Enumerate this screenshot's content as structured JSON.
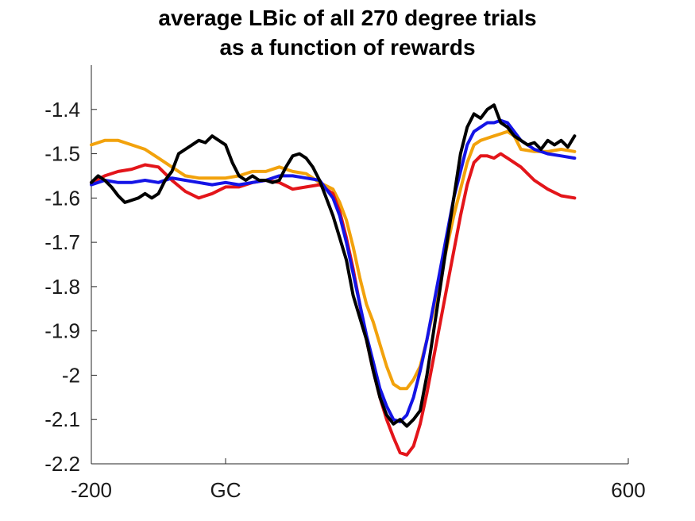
{
  "chart_data": {
    "type": "line",
    "title_lines": [
      "average LBic of all 270 degree trials",
      "as a function of rewards"
    ],
    "xlabel": "",
    "ylabel": "",
    "xlim": [
      -200,
      600
    ],
    "ylim": [
      -2.2,
      -1.3
    ],
    "x_ticks": [
      {
        "value": -200,
        "label": "-200"
      },
      {
        "value": 0,
        "label": "GC"
      },
      {
        "value": 600,
        "label": "600"
      }
    ],
    "y_ticks": [
      {
        "value": -1.4,
        "label": "-1.4"
      },
      {
        "value": -1.5,
        "label": "-1.5"
      },
      {
        "value": -1.6,
        "label": "-1.6"
      },
      {
        "value": -1.7,
        "label": "-1.7"
      },
      {
        "value": -1.8,
        "label": "-1.8"
      },
      {
        "value": -1.9,
        "label": "-1.9"
      },
      {
        "value": -2.0,
        "label": "-2"
      },
      {
        "value": -2.1,
        "label": "-2.1"
      },
      {
        "value": -2.2,
        "label": "-2.2"
      }
    ],
    "grid": false,
    "legend": "none",
    "series": [
      {
        "color": "#f2a20c",
        "points": [
          [
            -200,
            -1.48
          ],
          [
            -180,
            -1.47
          ],
          [
            -160,
            -1.47
          ],
          [
            -140,
            -1.48
          ],
          [
            -120,
            -1.49
          ],
          [
            -100,
            -1.51
          ],
          [
            -80,
            -1.53
          ],
          [
            -60,
            -1.55
          ],
          [
            -40,
            -1.555
          ],
          [
            -20,
            -1.555
          ],
          [
            0,
            -1.555
          ],
          [
            20,
            -1.55
          ],
          [
            40,
            -1.54
          ],
          [
            60,
            -1.54
          ],
          [
            80,
            -1.53
          ],
          [
            100,
            -1.54
          ],
          [
            120,
            -1.545
          ],
          [
            140,
            -1.565
          ],
          [
            160,
            -1.58
          ],
          [
            170,
            -1.61
          ],
          [
            180,
            -1.65
          ],
          [
            190,
            -1.71
          ],
          [
            200,
            -1.78
          ],
          [
            210,
            -1.84
          ],
          [
            220,
            -1.88
          ],
          [
            230,
            -1.93
          ],
          [
            240,
            -1.98
          ],
          [
            250,
            -2.02
          ],
          [
            260,
            -2.03
          ],
          [
            270,
            -2.03
          ],
          [
            280,
            -2.01
          ],
          [
            290,
            -1.98
          ],
          [
            300,
            -1.92
          ],
          [
            310,
            -1.85
          ],
          [
            320,
            -1.78
          ],
          [
            330,
            -1.71
          ],
          [
            340,
            -1.64
          ],
          [
            350,
            -1.58
          ],
          [
            360,
            -1.52
          ],
          [
            370,
            -1.48
          ],
          [
            380,
            -1.47
          ],
          [
            390,
            -1.465
          ],
          [
            400,
            -1.46
          ],
          [
            410,
            -1.455
          ],
          [
            420,
            -1.45
          ],
          [
            430,
            -1.46
          ],
          [
            440,
            -1.49
          ],
          [
            460,
            -1.495
          ],
          [
            480,
            -1.495
          ],
          [
            500,
            -1.49
          ],
          [
            520,
            -1.495
          ]
        ]
      },
      {
        "color": "#e3151a",
        "points": [
          [
            -200,
            -1.565
          ],
          [
            -180,
            -1.55
          ],
          [
            -160,
            -1.54
          ],
          [
            -140,
            -1.535
          ],
          [
            -120,
            -1.525
          ],
          [
            -100,
            -1.53
          ],
          [
            -80,
            -1.56
          ],
          [
            -60,
            -1.585
          ],
          [
            -40,
            -1.6
          ],
          [
            -20,
            -1.59
          ],
          [
            0,
            -1.575
          ],
          [
            20,
            -1.575
          ],
          [
            40,
            -1.565
          ],
          [
            60,
            -1.56
          ],
          [
            80,
            -1.565
          ],
          [
            100,
            -1.58
          ],
          [
            120,
            -1.575
          ],
          [
            140,
            -1.57
          ],
          [
            160,
            -1.59
          ],
          [
            170,
            -1.63
          ],
          [
            180,
            -1.69
          ],
          [
            190,
            -1.76
          ],
          [
            200,
            -1.84
          ],
          [
            210,
            -1.92
          ],
          [
            220,
            -1.99
          ],
          [
            230,
            -2.05
          ],
          [
            240,
            -2.1
          ],
          [
            250,
            -2.14
          ],
          [
            260,
            -2.175
          ],
          [
            270,
            -2.18
          ],
          [
            280,
            -2.16
          ],
          [
            290,
            -2.11
          ],
          [
            300,
            -2.04
          ],
          [
            310,
            -1.96
          ],
          [
            320,
            -1.88
          ],
          [
            330,
            -1.8
          ],
          [
            340,
            -1.72
          ],
          [
            350,
            -1.64
          ],
          [
            360,
            -1.57
          ],
          [
            370,
            -1.52
          ],
          [
            380,
            -1.505
          ],
          [
            390,
            -1.505
          ],
          [
            400,
            -1.51
          ],
          [
            410,
            -1.5
          ],
          [
            420,
            -1.51
          ],
          [
            440,
            -1.53
          ],
          [
            460,
            -1.56
          ],
          [
            480,
            -1.58
          ],
          [
            500,
            -1.595
          ],
          [
            520,
            -1.6
          ]
        ]
      },
      {
        "color": "#1414e6",
        "points": [
          [
            -200,
            -1.57
          ],
          [
            -180,
            -1.56
          ],
          [
            -160,
            -1.565
          ],
          [
            -140,
            -1.565
          ],
          [
            -120,
            -1.56
          ],
          [
            -100,
            -1.565
          ],
          [
            -80,
            -1.555
          ],
          [
            -60,
            -1.56
          ],
          [
            -40,
            -1.565
          ],
          [
            -20,
            -1.57
          ],
          [
            0,
            -1.565
          ],
          [
            20,
            -1.57
          ],
          [
            40,
            -1.565
          ],
          [
            60,
            -1.56
          ],
          [
            80,
            -1.55
          ],
          [
            100,
            -1.55
          ],
          [
            120,
            -1.555
          ],
          [
            140,
            -1.56
          ],
          [
            150,
            -1.58
          ],
          [
            160,
            -1.6
          ],
          [
            170,
            -1.64
          ],
          [
            180,
            -1.7
          ],
          [
            190,
            -1.77
          ],
          [
            200,
            -1.84
          ],
          [
            210,
            -1.91
          ],
          [
            220,
            -1.97
          ],
          [
            230,
            -2.03
          ],
          [
            240,
            -2.07
          ],
          [
            250,
            -2.1
          ],
          [
            260,
            -2.105
          ],
          [
            270,
            -2.09
          ],
          [
            280,
            -2.05
          ],
          [
            290,
            -1.99
          ],
          [
            300,
            -1.92
          ],
          [
            310,
            -1.84
          ],
          [
            320,
            -1.76
          ],
          [
            330,
            -1.68
          ],
          [
            340,
            -1.6
          ],
          [
            350,
            -1.54
          ],
          [
            360,
            -1.48
          ],
          [
            370,
            -1.45
          ],
          [
            380,
            -1.44
          ],
          [
            390,
            -1.43
          ],
          [
            400,
            -1.43
          ],
          [
            410,
            -1.425
          ],
          [
            420,
            -1.43
          ],
          [
            430,
            -1.45
          ],
          [
            440,
            -1.47
          ],
          [
            460,
            -1.49
          ],
          [
            480,
            -1.5
          ],
          [
            500,
            -1.505
          ],
          [
            520,
            -1.51
          ]
        ]
      },
      {
        "color": "#000000",
        "points": [
          [
            -200,
            -1.565
          ],
          [
            -190,
            -1.55
          ],
          [
            -180,
            -1.56
          ],
          [
            -170,
            -1.575
          ],
          [
            -160,
            -1.595
          ],
          [
            -150,
            -1.61
          ],
          [
            -140,
            -1.605
          ],
          [
            -130,
            -1.6
          ],
          [
            -120,
            -1.59
          ],
          [
            -110,
            -1.6
          ],
          [
            -100,
            -1.59
          ],
          [
            -90,
            -1.56
          ],
          [
            -80,
            -1.54
          ],
          [
            -70,
            -1.5
          ],
          [
            -60,
            -1.49
          ],
          [
            -50,
            -1.48
          ],
          [
            -40,
            -1.47
          ],
          [
            -30,
            -1.475
          ],
          [
            -20,
            -1.46
          ],
          [
            -10,
            -1.47
          ],
          [
            0,
            -1.48
          ],
          [
            10,
            -1.52
          ],
          [
            20,
            -1.55
          ],
          [
            30,
            -1.56
          ],
          [
            40,
            -1.55
          ],
          [
            50,
            -1.56
          ],
          [
            60,
            -1.56
          ],
          [
            70,
            -1.565
          ],
          [
            80,
            -1.56
          ],
          [
            90,
            -1.53
          ],
          [
            100,
            -1.505
          ],
          [
            110,
            -1.5
          ],
          [
            120,
            -1.51
          ],
          [
            130,
            -1.53
          ],
          [
            140,
            -1.56
          ],
          [
            150,
            -1.6
          ],
          [
            160,
            -1.64
          ],
          [
            170,
            -1.69
          ],
          [
            180,
            -1.74
          ],
          [
            190,
            -1.82
          ],
          [
            200,
            -1.87
          ],
          [
            210,
            -1.92
          ],
          [
            220,
            -1.99
          ],
          [
            230,
            -2.05
          ],
          [
            240,
            -2.09
          ],
          [
            250,
            -2.11
          ],
          [
            260,
            -2.1
          ],
          [
            270,
            -2.115
          ],
          [
            280,
            -2.1
          ],
          [
            290,
            -2.08
          ],
          [
            300,
            -2.0
          ],
          [
            310,
            -1.9
          ],
          [
            320,
            -1.8
          ],
          [
            330,
            -1.7
          ],
          [
            340,
            -1.6
          ],
          [
            350,
            -1.5
          ],
          [
            360,
            -1.44
          ],
          [
            370,
            -1.41
          ],
          [
            380,
            -1.42
          ],
          [
            390,
            -1.4
          ],
          [
            400,
            -1.39
          ],
          [
            410,
            -1.43
          ],
          [
            420,
            -1.44
          ],
          [
            430,
            -1.46
          ],
          [
            440,
            -1.47
          ],
          [
            450,
            -1.48
          ],
          [
            460,
            -1.475
          ],
          [
            470,
            -1.49
          ],
          [
            480,
            -1.47
          ],
          [
            490,
            -1.48
          ],
          [
            500,
            -1.47
          ],
          [
            510,
            -1.485
          ],
          [
            520,
            -1.46
          ]
        ]
      }
    ]
  }
}
